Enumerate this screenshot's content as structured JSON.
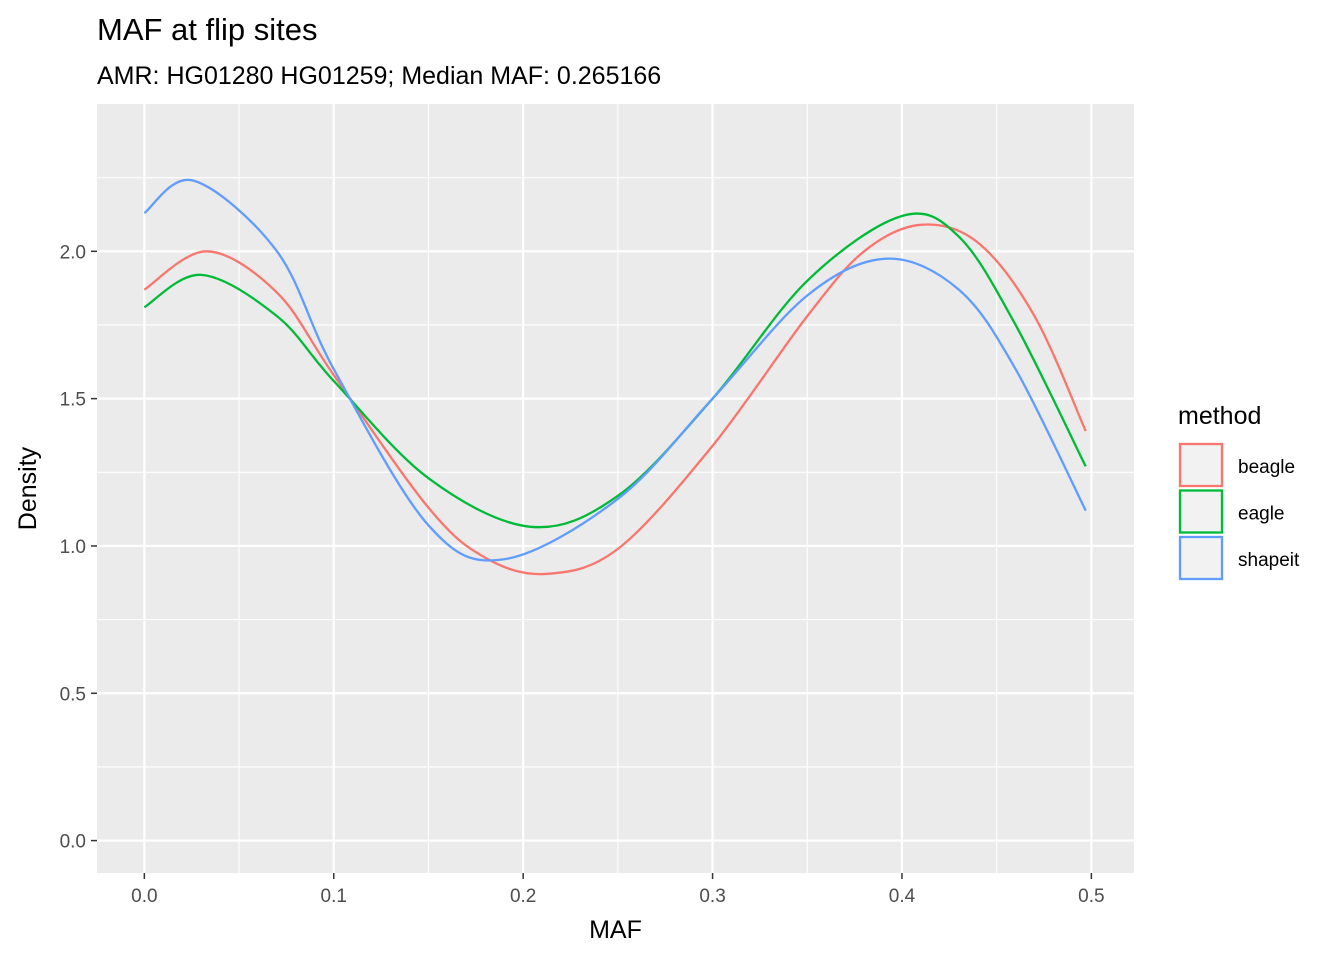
{
  "chart_data": {
    "type": "line",
    "title": "MAF at flip sites",
    "subtitle": "AMR: HG01280 HG01259; Median MAF: 0.265166",
    "xlabel": "MAF",
    "ylabel": "Density",
    "xlim": [
      -0.025,
      0.5225
    ],
    "ylim": [
      -0.11,
      2.5
    ],
    "x_ticks": [
      0.0,
      0.1,
      0.2,
      0.3,
      0.4,
      0.5
    ],
    "x_tick_labels": [
      "0.0",
      "0.1",
      "0.2",
      "0.3",
      "0.4",
      "0.5"
    ],
    "y_ticks": [
      0.0,
      0.5,
      1.0,
      1.5,
      2.0
    ],
    "y_tick_labels": [
      "0.0",
      "0.5",
      "1.0",
      "1.5",
      "2.0"
    ],
    "grid": true,
    "legend": {
      "title": "method",
      "position": "right"
    },
    "series": [
      {
        "name": "beagle",
        "color": "#F8766D",
        "points": [
          [
            0.0,
            1.87
          ],
          [
            0.033,
            2.0
          ],
          [
            0.07,
            1.86
          ],
          [
            0.1,
            1.58
          ],
          [
            0.15,
            1.13
          ],
          [
            0.18,
            0.96
          ],
          [
            0.212,
            0.905
          ],
          [
            0.25,
            0.99
          ],
          [
            0.3,
            1.34
          ],
          [
            0.35,
            1.78
          ],
          [
            0.38,
            2.0
          ],
          [
            0.41,
            2.09
          ],
          [
            0.44,
            2.03
          ],
          [
            0.47,
            1.78
          ],
          [
            0.497,
            1.39
          ]
        ]
      },
      {
        "name": "eagle",
        "color": "#00BA38",
        "points": [
          [
            0.0,
            1.81
          ],
          [
            0.03,
            1.92
          ],
          [
            0.07,
            1.78
          ],
          [
            0.1,
            1.56
          ],
          [
            0.15,
            1.23
          ],
          [
            0.204,
            1.065
          ],
          [
            0.25,
            1.17
          ],
          [
            0.3,
            1.5
          ],
          [
            0.35,
            1.9
          ],
          [
            0.4,
            2.12
          ],
          [
            0.43,
            2.05
          ],
          [
            0.46,
            1.75
          ],
          [
            0.497,
            1.27
          ]
        ]
      },
      {
        "name": "shapeit",
        "color": "#619CFF",
        "points": [
          [
            0.0,
            2.13
          ],
          [
            0.026,
            2.24
          ],
          [
            0.07,
            2.0
          ],
          [
            0.1,
            1.6
          ],
          [
            0.15,
            1.07
          ],
          [
            0.19,
            0.955
          ],
          [
            0.25,
            1.16
          ],
          [
            0.3,
            1.5
          ],
          [
            0.35,
            1.85
          ],
          [
            0.392,
            1.975
          ],
          [
            0.43,
            1.87
          ],
          [
            0.46,
            1.6
          ],
          [
            0.497,
            1.12
          ]
        ]
      }
    ]
  }
}
